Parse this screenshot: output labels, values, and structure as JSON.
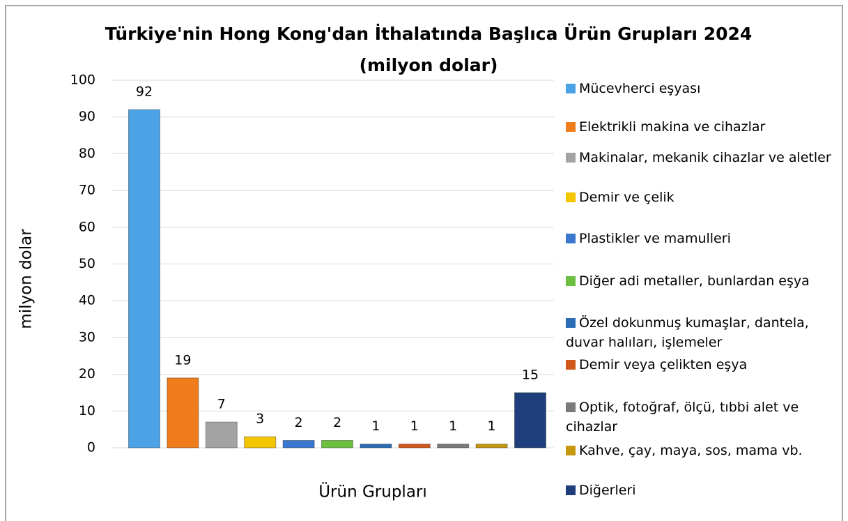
{
  "chart_data": {
    "type": "bar",
    "title": "Türkiye'nin Hong Kong'dan İthalatında Başlıca Ürün Grupları 2024",
    "subtitle": "(milyon dolar)",
    "x_label": "Ürün Grupları",
    "y_label": "milyon dolar",
    "categories": [
      null
    ],
    "series": [
      {
        "name": "Mücevherci eşyası",
        "color": "#4ba3e6",
        "values": [
          92
        ]
      },
      {
        "name": "Elektrikli makina ve cihazlar",
        "color": "#f07d1c",
        "values": [
          19
        ]
      },
      {
        "name": "Makinalar, mekanik cihazlar ve aletler",
        "color": "#a3a3a3",
        "values": [
          7
        ]
      },
      {
        "name": "Demir ve çelik",
        "color": "#f4c600",
        "values": [
          3
        ]
      },
      {
        "name": "Plastikler ve mamulleri",
        "color": "#3a78d0",
        "values": [
          2
        ]
      },
      {
        "name": "Diğer adi metaller, bunlardan eşya",
        "color": "#6cbf3f",
        "values": [
          2
        ]
      },
      {
        "name": "Özel dokunmuş kumaşlar, dantela, duvar halıları, işlemeler",
        "color": "#2a6db5",
        "values": [
          1
        ]
      },
      {
        "name": "Demir veya çelikten eşya",
        "color": "#d0581a",
        "values": [
          1
        ]
      },
      {
        "name": "Optik, fotoğraf, ölçü, tıbbi alet ve cihazlar",
        "color": "#7a7a7a",
        "values": [
          1
        ]
      },
      {
        "name": "Kahve, çay, maya, sos, mama vb.",
        "color": "#c7980f",
        "values": [
          1
        ]
      },
      {
        "name": "Diğerleri",
        "color": "#1f3f7c",
        "values": [
          15
        ]
      }
    ],
    "ylim": [
      0,
      100
    ],
    "yticks": [
      0,
      10,
      20,
      30,
      40,
      50,
      60,
      70,
      80,
      90,
      100
    ],
    "grid": true,
    "legend": "right"
  }
}
